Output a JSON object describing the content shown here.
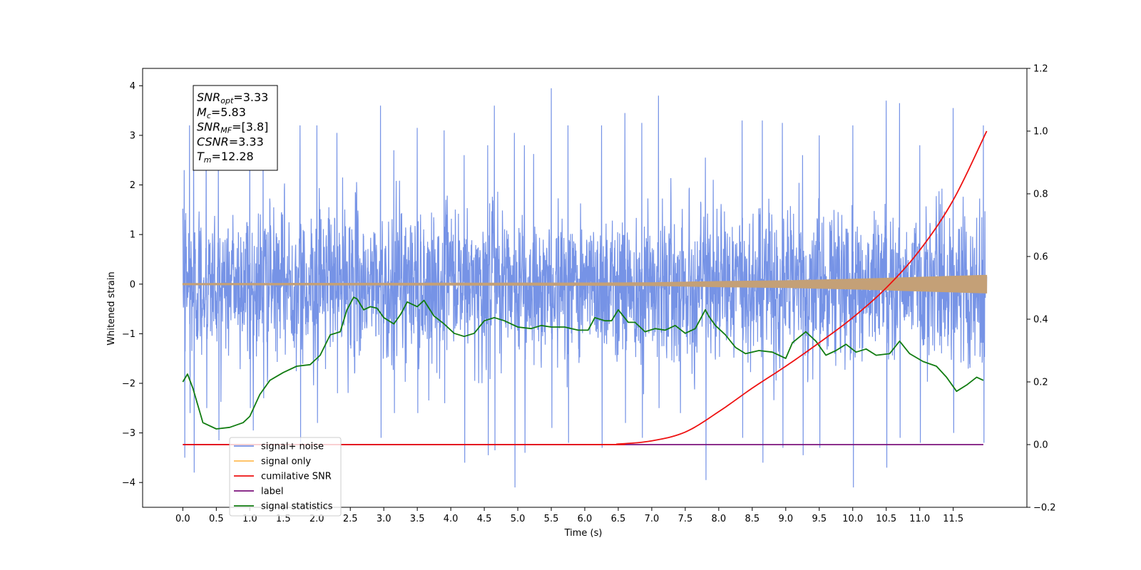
{
  "chart_data": {
    "type": "line",
    "xlabel": "Time (s)",
    "ylabel": "Whitened strain",
    "xlim": [
      -0.6,
      12.6
    ],
    "ylim": [
      -4.5,
      4.35
    ],
    "y2lim": [
      -0.2,
      1.2
    ],
    "x_ticks": [
      0.0,
      0.5,
      1.0,
      1.5,
      2.0,
      2.5,
      3.0,
      3.5,
      4.0,
      4.5,
      5.0,
      5.5,
      6.0,
      6.5,
      7.0,
      7.5,
      8.0,
      8.5,
      9.0,
      9.5,
      10.0,
      10.5,
      11.0,
      11.5
    ],
    "x_tick_labels": [
      "0.0",
      "0.5",
      "1.0",
      "1.5",
      "2.0",
      "2.5",
      "3.0",
      "3.5",
      "4.0",
      "4.5",
      "5.0",
      "5.5",
      "6.0",
      "6.5",
      "7.0",
      "7.5",
      "8.0",
      "8.5",
      "9.0",
      "9.5",
      "10.0",
      "10.5",
      "11.0",
      "11.5"
    ],
    "y_ticks": [
      -4,
      -3,
      -2,
      -1,
      0,
      1,
      2,
      3,
      4
    ],
    "y_tick_labels": [
      "−4",
      "−3",
      "−2",
      "−1",
      "0",
      "1",
      "2",
      "3",
      "4"
    ],
    "y2_ticks": [
      -0.2,
      0.0,
      0.2,
      0.4,
      0.6,
      0.8,
      1.0,
      1.2
    ],
    "y2_tick_labels": [
      "−0.2",
      "0.0",
      "0.2",
      "0.4",
      "0.6",
      "0.8",
      "1.0",
      "1.2"
    ],
    "grid": false,
    "legend_placement": "lower-left",
    "annotation": {
      "lines": [
        {
          "base": "SNR",
          "sub": "opt",
          "rest": "=3.33"
        },
        {
          "base": "M",
          "sub": "c",
          "rest": "=5.83"
        },
        {
          "base": "SNR",
          "sub": "MF",
          "rest": "=[3.8]"
        },
        {
          "base": "CSNR",
          "sub": "",
          "rest": "=3.33"
        },
        {
          "base": "T",
          "sub": "m",
          "rest": "=12.28"
        }
      ]
    },
    "series": [
      {
        "name": "signal+ noise",
        "axis": "left",
        "color": "#7693e6",
        "x_range": [
          0.0,
          12.0
        ],
        "samples": 4096,
        "envelope_peaks": [
          [
            0.02,
            2.3,
            -3.5
          ],
          [
            0.1,
            3.2,
            -2.6
          ],
          [
            0.16,
            2.9,
            -3.8
          ],
          [
            0.35,
            3.2,
            -2.5
          ],
          [
            0.53,
            2.5,
            -3.15
          ],
          [
            1.0,
            3.5,
            -2.5
          ],
          [
            1.2,
            3.0,
            -2.3
          ],
          [
            1.75,
            3.2,
            -3.2
          ],
          [
            2.0,
            3.2,
            -2.8
          ],
          [
            2.3,
            3.05,
            -2.2
          ],
          [
            2.95,
            3.6,
            -3.1
          ],
          [
            3.15,
            2.7,
            -2.6
          ],
          [
            3.5,
            3.15,
            -2.6
          ],
          [
            3.9,
            3.1,
            -2.4
          ],
          [
            4.2,
            2.6,
            -3.6
          ],
          [
            4.55,
            2.8,
            -3.45
          ],
          [
            4.65,
            3.6,
            -3.35
          ],
          [
            4.95,
            3.05,
            -4.1
          ],
          [
            5.1,
            2.8,
            -3.4
          ],
          [
            5.5,
            3.95,
            -2.9
          ],
          [
            5.75,
            3.2,
            -3.2
          ],
          [
            6.25,
            3.2,
            -3.3
          ],
          [
            6.6,
            3.45,
            -2.8
          ],
          [
            6.85,
            3.25,
            -3.1
          ],
          [
            7.1,
            3.8,
            -2.5
          ],
          [
            7.8,
            2.55,
            -3.95
          ],
          [
            8.35,
            3.3,
            -3.1
          ],
          [
            8.65,
            3.3,
            -3.6
          ],
          [
            8.95,
            3.25,
            -3.3
          ],
          [
            9.25,
            2.6,
            -3.45
          ],
          [
            9.5,
            3.0,
            -3.3
          ],
          [
            10.0,
            3.2,
            -4.1
          ],
          [
            10.5,
            3.7,
            -3.7
          ],
          [
            10.7,
            3.65,
            -3.1
          ],
          [
            11.0,
            2.8,
            -3.2
          ],
          [
            11.5,
            3.55,
            -3.0
          ],
          [
            11.95,
            3.2,
            -3.2
          ]
        ]
      },
      {
        "name": "signal only",
        "axis": "left",
        "color": "#ffbb55",
        "fill_color": "#c4a077",
        "x_range": [
          0.0,
          12.0
        ],
        "amplitude_points": [
          [
            0.0,
            0.015
          ],
          [
            6.0,
            0.025
          ],
          [
            7.0,
            0.03
          ],
          [
            8.0,
            0.055
          ],
          [
            9.0,
            0.07
          ],
          [
            10.0,
            0.1
          ],
          [
            11.0,
            0.14
          ],
          [
            12.0,
            0.18
          ]
        ]
      },
      {
        "name": "cumilative SNR",
        "axis": "right",
        "color": "#ee1111",
        "x": [
          0.0,
          6.0,
          6.5,
          7.0,
          7.5,
          8.0,
          8.5,
          9.0,
          9.5,
          10.0,
          10.5,
          11.0,
          11.5,
          12.0
        ],
        "y": [
          0.0,
          0.0,
          0.002,
          0.012,
          0.04,
          0.105,
          0.18,
          0.25,
          0.325,
          0.405,
          0.5,
          0.62,
          0.78,
          1.0
        ]
      },
      {
        "name": "label",
        "axis": "right",
        "color": "#7b137b",
        "x": [
          0.0,
          11.95
        ],
        "y": [
          0.0,
          0.0
        ]
      },
      {
        "name": "signal statistics",
        "axis": "right",
        "color": "#117c11",
        "x": [
          0.0,
          0.07,
          0.15,
          0.3,
          0.5,
          0.7,
          0.9,
          1.0,
          1.15,
          1.3,
          1.5,
          1.7,
          1.9,
          2.05,
          2.2,
          2.35,
          2.45,
          2.55,
          2.6,
          2.7,
          2.8,
          2.9,
          3.0,
          3.15,
          3.25,
          3.35,
          3.5,
          3.6,
          3.75,
          3.9,
          4.05,
          4.2,
          4.35,
          4.5,
          4.65,
          4.8,
          5.0,
          5.2,
          5.35,
          5.5,
          5.7,
          5.9,
          6.05,
          6.15,
          6.3,
          6.4,
          6.5,
          6.65,
          6.75,
          6.9,
          7.05,
          7.2,
          7.35,
          7.5,
          7.65,
          7.8,
          7.85,
          7.95,
          8.1,
          8.25,
          8.4,
          8.6,
          8.8,
          9.0,
          9.1,
          9.3,
          9.45,
          9.6,
          9.75,
          9.9,
          10.05,
          10.2,
          10.35,
          10.55,
          10.7,
          10.85,
          11.05,
          11.25,
          11.4,
          11.55,
          11.7,
          11.85,
          11.95
        ],
        "y": [
          0.2,
          0.225,
          0.18,
          0.07,
          0.05,
          0.055,
          0.07,
          0.09,
          0.16,
          0.205,
          0.23,
          0.25,
          0.255,
          0.285,
          0.35,
          0.36,
          0.43,
          0.47,
          0.465,
          0.43,
          0.44,
          0.435,
          0.405,
          0.385,
          0.415,
          0.455,
          0.44,
          0.46,
          0.41,
          0.385,
          0.355,
          0.345,
          0.355,
          0.395,
          0.405,
          0.395,
          0.375,
          0.37,
          0.38,
          0.375,
          0.375,
          0.365,
          0.365,
          0.405,
          0.395,
          0.395,
          0.43,
          0.39,
          0.39,
          0.36,
          0.37,
          0.365,
          0.38,
          0.355,
          0.37,
          0.43,
          0.41,
          0.38,
          0.35,
          0.31,
          0.29,
          0.3,
          0.295,
          0.275,
          0.325,
          0.36,
          0.33,
          0.285,
          0.3,
          0.32,
          0.295,
          0.305,
          0.285,
          0.29,
          0.33,
          0.29,
          0.265,
          0.25,
          0.215,
          0.17,
          0.19,
          0.215,
          0.205
        ]
      }
    ],
    "legend_entries": [
      {
        "label": "signal+ noise",
        "color": "#7693e6"
      },
      {
        "label": "signal only",
        "color": "#ffbb55"
      },
      {
        "label": "cumilative SNR",
        "color": "#ee1111"
      },
      {
        "label": "label",
        "color": "#7b137b"
      },
      {
        "label": "signal statistics",
        "color": "#117c11"
      }
    ]
  }
}
